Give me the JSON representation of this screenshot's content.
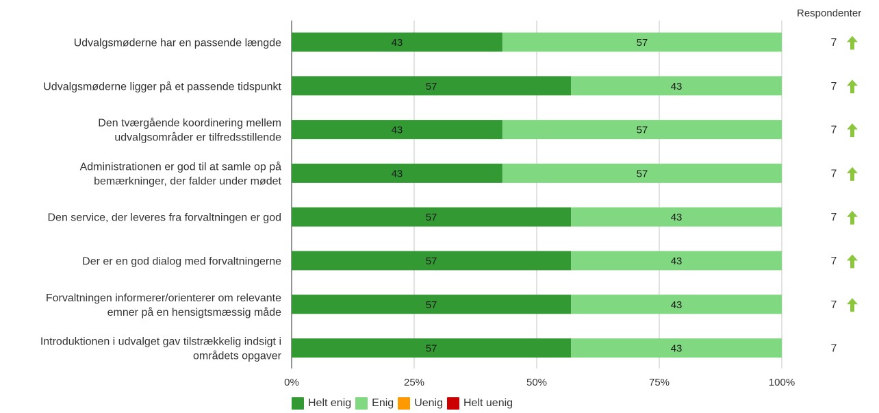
{
  "chart_data": {
    "type": "bar",
    "orientation": "horizontal",
    "stacked": true,
    "categories": [
      [
        "Udvalgsmøderne har en passende længde"
      ],
      [
        "Udvalgsmøderne ligger på et passende tidspunkt"
      ],
      [
        "Den tværgående koordinering mellem",
        "udvalgsområder er tilfredsstillende"
      ],
      [
        "Administrationen er god til at samle op på",
        "bemærkninger, der falder under mødet"
      ],
      [
        "Den service, der leveres fra forvaltningen er god"
      ],
      [
        "Der er en god dialog med forvaltningerne"
      ],
      [
        "Forvaltningen informerer/orienterer om relevante",
        "emner på en hensigtsmæssig måde"
      ],
      [
        "Introduktionen i udvalget gav tilstrækkelig indsigt i",
        "områdets opgaver"
      ]
    ],
    "series": [
      {
        "name": "Helt enig",
        "color": "#339933",
        "values": [
          43,
          57,
          43,
          43,
          57,
          57,
          57,
          57
        ]
      },
      {
        "name": "Enig",
        "color": "#80d880",
        "values": [
          57,
          43,
          57,
          57,
          43,
          43,
          43,
          43
        ]
      },
      {
        "name": "Uenig",
        "color": "#ff9900",
        "values": [
          0,
          0,
          0,
          0,
          0,
          0,
          0,
          0
        ]
      },
      {
        "name": "Helt uenig",
        "color": "#cc0000",
        "values": [
          0,
          0,
          0,
          0,
          0,
          0,
          0,
          0
        ]
      }
    ],
    "xlim": [
      0,
      100
    ],
    "xticks": [
      "0%",
      "25%",
      "50%",
      "75%",
      "100%"
    ],
    "grid": true,
    "legend": "bottom",
    "respondents_header": "Respondenter",
    "respondents": [
      7,
      7,
      7,
      7,
      7,
      7,
      7,
      7
    ],
    "trend_up": [
      true,
      true,
      true,
      true,
      true,
      true,
      true,
      false
    ],
    "trend_color": "#8cc63f"
  }
}
